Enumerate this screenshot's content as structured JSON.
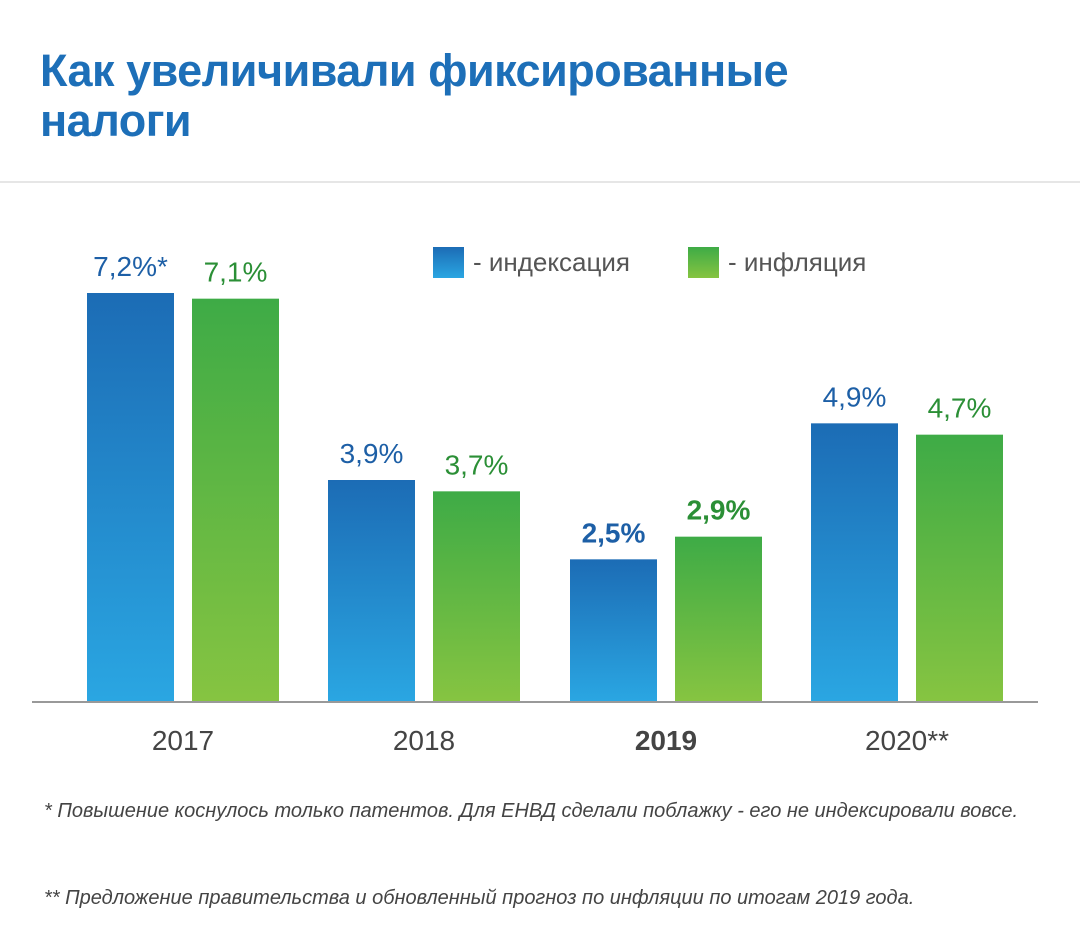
{
  "title": "Как увеличивали фиксированные налоги",
  "colors": {
    "title": "#1d6fb8",
    "rule": "#e6e6e6",
    "axis": "#999999",
    "index_top": "#1c6cb5",
    "index_bottom": "#2aa6e2",
    "index_label": "#1d5fa6",
    "infl_top": "#3eab46",
    "infl_bottom": "#86c441",
    "infl_label": "#2b8f36",
    "tick_label": "#444444",
    "footnote": "#444444"
  },
  "chart_data": {
    "type": "bar",
    "categories": [
      "2017",
      "2018",
      "2019",
      "2020**"
    ],
    "highlight_category": "2019",
    "series": [
      {
        "name": "- индексация",
        "values": [
          7.2,
          3.9,
          2.5,
          4.9
        ],
        "labels": [
          "7,2%*",
          "3,9%",
          "2,5%",
          "4,9%"
        ]
      },
      {
        "name": "- инфляция",
        "values": [
          7.1,
          3.7,
          2.9,
          4.7
        ],
        "labels": [
          "7,1%",
          "3,7%",
          "2,9%",
          "4,7%"
        ]
      }
    ],
    "ylim": [
      0,
      7.8
    ],
    "grid": false,
    "legend": "top-right"
  },
  "footnotes": [
    "* Повышение коснулось только патентов. Для ЕНВД сделали поблажку - его не индексировали вовсе.",
    "** Предложение правительства и обновленный прогноз по инфляции по итогам 2019 года."
  ]
}
